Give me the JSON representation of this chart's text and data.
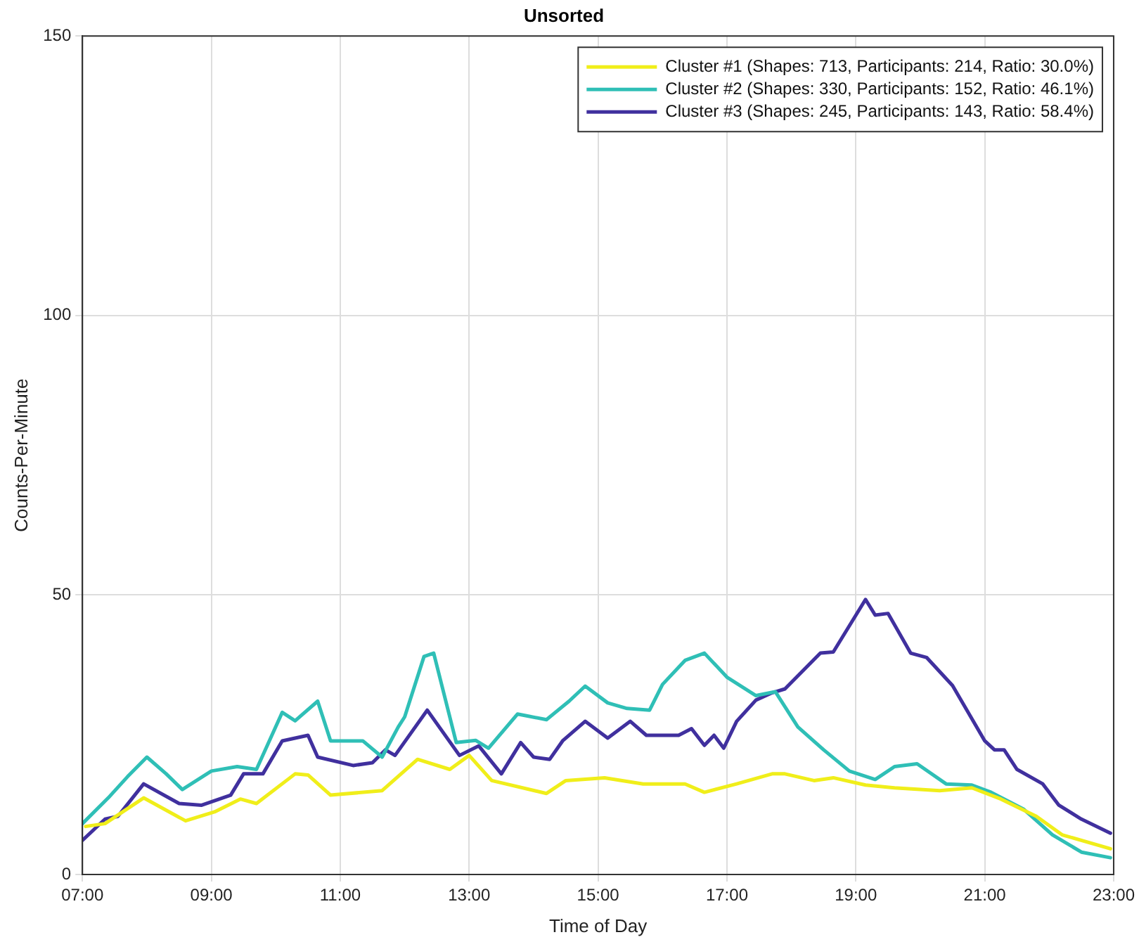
{
  "chart_data": {
    "type": "line",
    "title": "Unsorted",
    "xlabel": "Time of Day",
    "ylabel": "Counts-Per-Minute",
    "xlim": [
      7,
      23
    ],
    "ylim": [
      0,
      150
    ],
    "xticks": [
      {
        "value": 7,
        "label": "07:00"
      },
      {
        "value": 9,
        "label": "09:00"
      },
      {
        "value": 11,
        "label": "11:00"
      },
      {
        "value": 13,
        "label": "13:00"
      },
      {
        "value": 15,
        "label": "15:00"
      },
      {
        "value": 17,
        "label": "17:00"
      },
      {
        "value": 19,
        "label": "19:00"
      },
      {
        "value": 21,
        "label": "21:00"
      },
      {
        "value": 23,
        "label": "23:00"
      }
    ],
    "yticks": [
      0,
      50,
      100,
      150
    ],
    "grid": true,
    "legend": "top right",
    "marker": "none",
    "line_style": "solid",
    "series": [
      {
        "name": "Cluster #1 (Shapes: 713, Participants: 214, Ratio: 30.0%)",
        "color": "#f0ee1a",
        "x": [
          7.05,
          7.35,
          7.95,
          8.6,
          9.05,
          9.45,
          9.7,
          10.3,
          10.5,
          10.85,
          11.65,
          12.2,
          12.7,
          13.0,
          13.35,
          14.2,
          14.5,
          15.1,
          15.7,
          16.35,
          16.65,
          17.15,
          17.7,
          17.9,
          18.35,
          18.65,
          19.15,
          19.6,
          20.3,
          20.8,
          21.25,
          21.8,
          22.2,
          22.95
        ],
        "values": [
          8.6,
          9.1,
          13.7,
          9.6,
          11.2,
          13.5,
          12.7,
          18,
          17.8,
          14.2,
          15,
          20.6,
          18.8,
          21.3,
          16.8,
          14.5,
          16.8,
          17.3,
          16.2,
          16.2,
          14.7,
          16.2,
          18,
          18,
          16.8,
          17.3,
          16,
          15.5,
          15,
          15.5,
          13.5,
          10.4,
          7.1,
          4.6
        ]
      },
      {
        "name": "Cluster #2 (Shapes: 330, Participants: 152, Ratio: 46.1%)",
        "color": "#2fbfb6",
        "x": [
          7.0,
          7.4,
          7.7,
          8.0,
          8.3,
          8.55,
          9.0,
          9.4,
          9.7,
          10.1,
          10.3,
          10.65,
          10.85,
          11.35,
          11.65,
          11.9,
          12.0,
          12.3,
          12.45,
          12.8,
          13.1,
          13.3,
          13.75,
          14.2,
          14.55,
          14.8,
          15.15,
          15.45,
          15.8,
          16.0,
          16.35,
          16.65,
          17.0,
          17.45,
          17.75,
          18.1,
          18.5,
          18.9,
          19.3,
          19.6,
          19.95,
          20.4,
          20.8,
          21.1,
          21.6,
          22.05,
          22.5,
          22.95
        ],
        "values": [
          9.1,
          13.7,
          17.5,
          21,
          18,
          15.2,
          18.5,
          19.3,
          18.8,
          29,
          27.5,
          31,
          23.9,
          23.9,
          21,
          26.4,
          28.2,
          39,
          39.6,
          23.6,
          24,
          22.6,
          28.7,
          27.7,
          31,
          33.7,
          30.7,
          29.7,
          29.4,
          34,
          38.3,
          39.6,
          35.3,
          32,
          32.7,
          26.4,
          22.3,
          18.5,
          17,
          19.3,
          19.8,
          16.2,
          16,
          14.7,
          11.7,
          7.1,
          4,
          3
        ]
      },
      {
        "name": "Cluster #3 (Shapes: 245, Participants: 143, Ratio: 58.4%)",
        "color": "#40309e",
        "x": [
          7.0,
          7.35,
          7.55,
          7.95,
          8.5,
          8.85,
          9.3,
          9.5,
          9.8,
          10.1,
          10.5,
          10.65,
          11.2,
          11.5,
          11.7,
          11.85,
          12.35,
          12.85,
          13.15,
          13.5,
          13.8,
          14.0,
          14.25,
          14.45,
          14.8,
          15.15,
          15.5,
          15.75,
          16.25,
          16.45,
          16.65,
          16.8,
          16.95,
          17.15,
          17.45,
          17.7,
          17.9,
          18.45,
          18.65,
          19.15,
          19.3,
          19.5,
          19.85,
          20.1,
          20.5,
          21.0,
          21.15,
          21.3,
          21.5,
          21.9,
          22.15,
          22.5,
          22.95
        ],
        "values": [
          6.1,
          9.9,
          10.4,
          16.2,
          12.7,
          12.4,
          14.2,
          18,
          18,
          23.9,
          24.9,
          21,
          19.5,
          20,
          22.3,
          21.3,
          29.4,
          21.3,
          23,
          18,
          23.6,
          21,
          20.6,
          23.9,
          27.4,
          24.4,
          27.4,
          24.9,
          24.9,
          26.1,
          23.1,
          24.9,
          22.6,
          27.4,
          31.2,
          32.5,
          33.2,
          39.6,
          39.8,
          49.2,
          46.4,
          46.7,
          39.6,
          38.8,
          33.8,
          23.9,
          22.3,
          22.3,
          18.8,
          16.2,
          12.4,
          9.9,
          7.4
        ]
      }
    ]
  }
}
